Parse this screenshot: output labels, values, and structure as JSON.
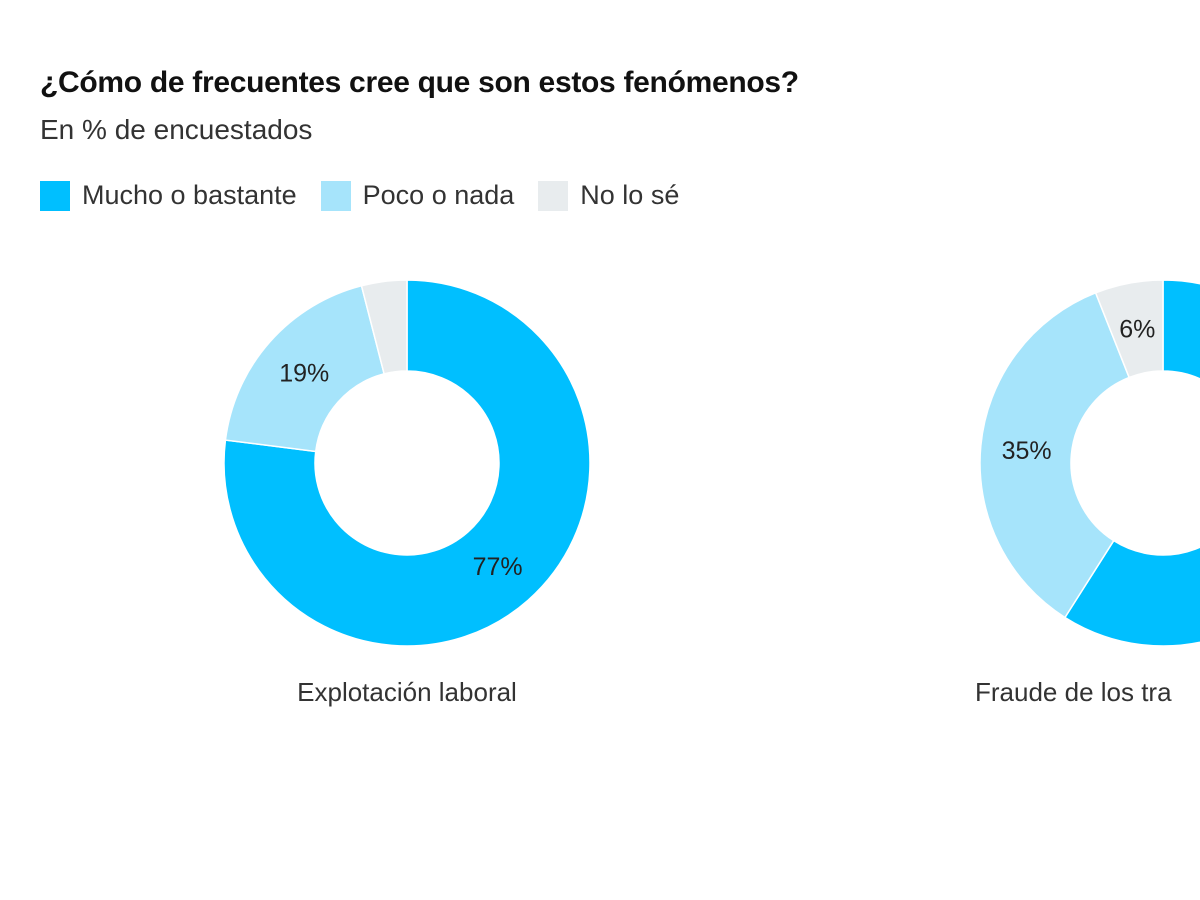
{
  "chart_data": {
    "type": "pie",
    "title": "¿Cómo de frecuentes cree que son estos fenómenos?",
    "subtitle": "En % de encuestados",
    "legend": [
      {
        "label": "Mucho o bastante",
        "color": "#00bfff"
      },
      {
        "label": "Poco o nada",
        "color": "#a6e4fb"
      },
      {
        "label": "No lo sé",
        "color": "#e8ecee"
      }
    ],
    "legend_placement": "top-left",
    "charts": [
      {
        "name": "Explotación laboral",
        "values": [
          77,
          19,
          4
        ],
        "labels": [
          "77%",
          "19%",
          null
        ]
      },
      {
        "name": "Fraude de los tra",
        "values": [
          59,
          35,
          6
        ],
        "labels": [
          null,
          "35%",
          "6%"
        ]
      }
    ]
  }
}
